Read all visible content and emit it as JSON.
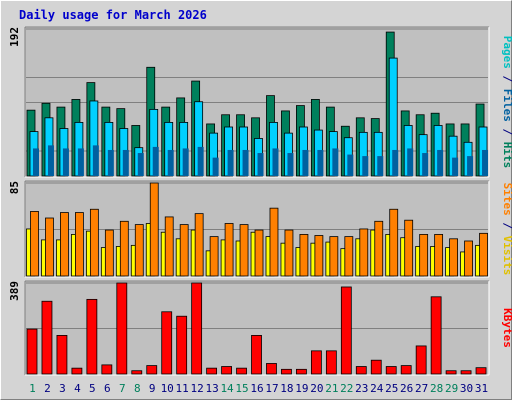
{
  "title": "Daily usage for March 2026",
  "colors": {
    "hits": "#00805c",
    "files": "#00d0ff",
    "pages": "#0060a0",
    "visits": "#ffff00",
    "sites": "#ff8000",
    "kbytes": "#ff0000",
    "weekend_label": "#00805c",
    "weekday_label": "#000080",
    "panel_bg": "#c0c0c0",
    "frame_bg": "#d4d4d4",
    "title": "#0000cc"
  },
  "right_labels": {
    "top": [
      {
        "text": "Pages",
        "color": "#00c0c0"
      },
      {
        "text": " / ",
        "color": "#000080"
      },
      {
        "text": "Files",
        "color": "#0060a0"
      },
      {
        "text": " / ",
        "color": "#000080"
      },
      {
        "text": "Hits",
        "color": "#00805c"
      }
    ],
    "middle": [
      {
        "text": "Sites",
        "color": "#ff8000"
      },
      {
        "text": " / ",
        "color": "#000080"
      },
      {
        "text": "Visits",
        "color": "#e0c000"
      }
    ],
    "bottom": [
      {
        "text": "KBytes",
        "color": "#ff0000"
      }
    ]
  },
  "chart_data": [
    {
      "type": "bar",
      "panel": "hits_files_pages",
      "ymax_label": "192",
      "ylim": [
        0,
        192
      ],
      "categories": [
        "1",
        "2",
        "3",
        "4",
        "5",
        "6",
        "7",
        "8",
        "9",
        "10",
        "11",
        "12",
        "13",
        "14",
        "15",
        "16",
        "17",
        "18",
        "19",
        "20",
        "21",
        "22",
        "23",
        "24",
        "25",
        "26",
        "27",
        "28",
        "29",
        "30",
        "31"
      ],
      "weekend": [
        1,
        7,
        8,
        14,
        15,
        21,
        22,
        28,
        29
      ],
      "series": [
        {
          "name": "Hits",
          "values": [
            86,
            95,
            90,
            100,
            122,
            90,
            88,
            66,
            142,
            90,
            102,
            124,
            68,
            80,
            80,
            76,
            105,
            85,
            92,
            100,
            90,
            65,
            76,
            75,
            188,
            85,
            80,
            82,
            68,
            68,
            94
          ]
        },
        {
          "name": "Files",
          "values": [
            58,
            76,
            62,
            70,
            98,
            70,
            62,
            37,
            87,
            70,
            70,
            97,
            56,
            64,
            64,
            49,
            70,
            56,
            64,
            60,
            58,
            50,
            57,
            57,
            154,
            66,
            54,
            66,
            52,
            44,
            64
          ]
        },
        {
          "name": "Pages",
          "values": [
            36,
            40,
            36,
            36,
            40,
            34,
            34,
            30,
            38,
            34,
            36,
            38,
            24,
            34,
            34,
            30,
            36,
            30,
            34,
            34,
            36,
            28,
            26,
            26,
            34,
            36,
            30,
            34,
            24,
            26,
            34
          ]
        }
      ]
    },
    {
      "type": "bar",
      "panel": "visits_sites",
      "ymax_label": "85",
      "ylim": [
        0,
        85
      ],
      "categories": [
        "1",
        "2",
        "3",
        "4",
        "5",
        "6",
        "7",
        "8",
        "9",
        "10",
        "11",
        "12",
        "13",
        "14",
        "15",
        "16",
        "17",
        "18",
        "19",
        "20",
        "21",
        "22",
        "23",
        "24",
        "25",
        "26",
        "27",
        "28",
        "29",
        "30",
        "31"
      ],
      "series": [
        {
          "name": "Visits",
          "values": [
            43,
            33,
            33,
            38,
            41,
            26,
            27,
            28,
            48,
            40,
            34,
            42,
            23,
            33,
            32,
            40,
            36,
            30,
            26,
            30,
            31,
            25,
            34,
            42,
            38,
            35,
            27,
            27,
            26,
            22,
            28
          ]
        },
        {
          "name": "Sites",
          "values": [
            59,
            53,
            58,
            58,
            61,
            42,
            50,
            47,
            85,
            54,
            47,
            57,
            36,
            48,
            47,
            42,
            62,
            42,
            38,
            37,
            36,
            36,
            43,
            50,
            61,
            51,
            38,
            38,
            34,
            32,
            39
          ]
        }
      ]
    },
    {
      "type": "bar",
      "panel": "kbytes",
      "ymax_label": "389",
      "ylim": [
        0,
        389
      ],
      "categories": [
        "1",
        "2",
        "3",
        "4",
        "5",
        "6",
        "7",
        "8",
        "9",
        "10",
        "11",
        "12",
        "13",
        "14",
        "15",
        "16",
        "17",
        "18",
        "19",
        "20",
        "21",
        "22",
        "23",
        "24",
        "25",
        "26",
        "27",
        "28",
        "29",
        "30",
        "31"
      ],
      "series": [
        {
          "name": "KBytes",
          "values": [
            192,
            311,
            165,
            25,
            319,
            39,
            389,
            14,
            36,
            266,
            247,
            389,
            25,
            32,
            25,
            165,
            45,
            20,
            20,
            99,
            99,
            372,
            32,
            59,
            32,
            36,
            120,
            330,
            14,
            14,
            27
          ]
        }
      ]
    }
  ]
}
